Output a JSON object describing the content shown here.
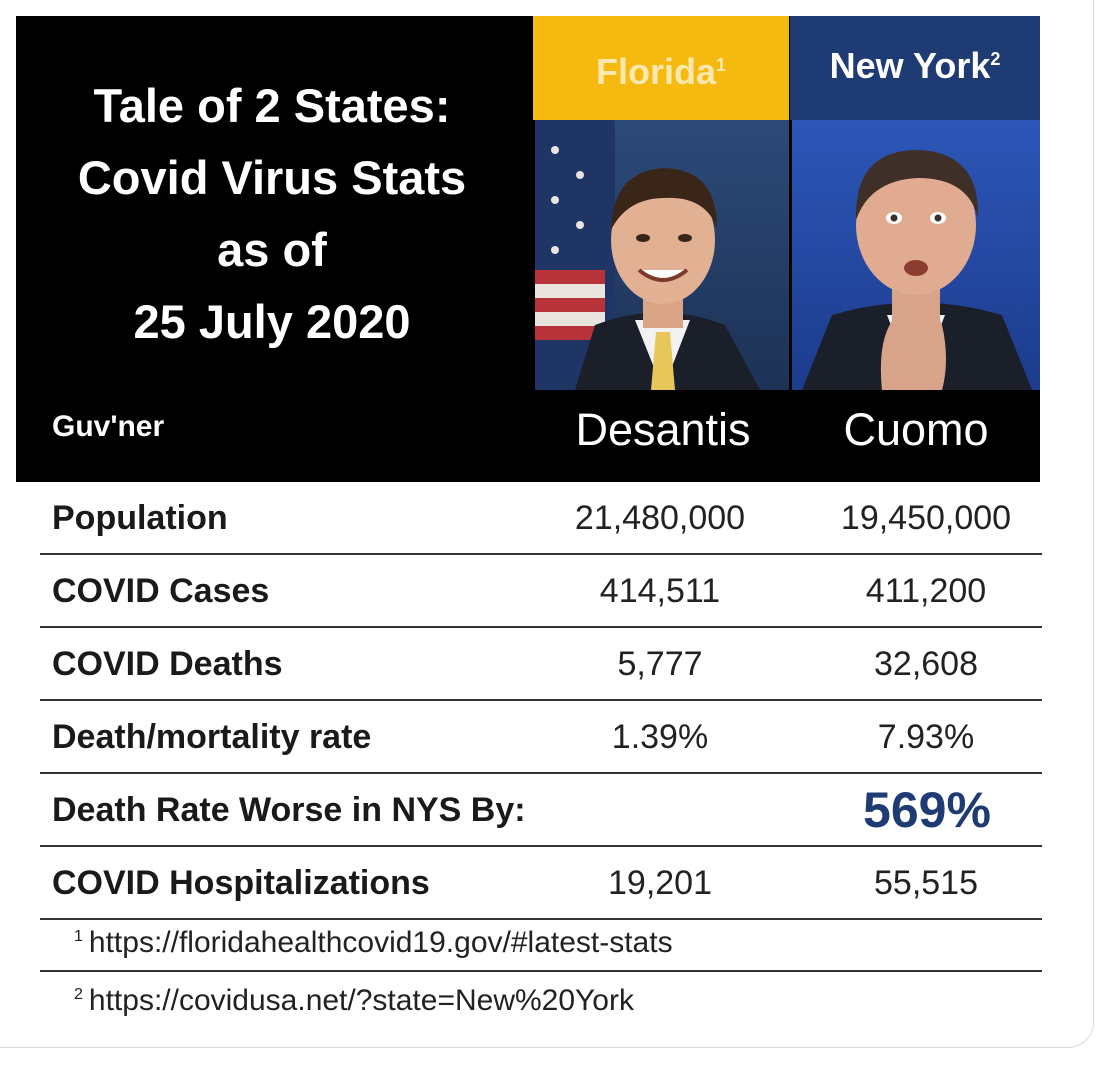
{
  "title_lines": [
    "Tale of 2 States:",
    "Covid Virus Stats",
    "as of",
    "25 July 2020"
  ],
  "columns": {
    "florida": {
      "state": "Florida",
      "note_mark": "1",
      "governor": "Desantis"
    },
    "new_york": {
      "state": "New York",
      "note_mark": "2",
      "governor": "Cuomo"
    }
  },
  "governor_label": "Guv'ner",
  "rows": [
    {
      "label": "Population",
      "florida": "21,480,000",
      "new_york": "19,450,000"
    },
    {
      "label": "COVID Cases",
      "florida": "414,511",
      "new_york": "411,200"
    },
    {
      "label": "COVID Deaths",
      "florida": "5,777",
      "new_york": "32,608"
    },
    {
      "label": "Death/mortality rate",
      "florida": "1.39%",
      "new_york": "7.93%"
    },
    {
      "label": "Death Rate Worse in NYS By:",
      "highlight": "569%"
    },
    {
      "label": "COVID Hospitalizations",
      "florida": "19,201",
      "new_york": "55,515"
    }
  ],
  "footnotes": [
    {
      "mark": "1",
      "text": "https://floridahealthcovid19.gov/#latest-stats"
    },
    {
      "mark": "2",
      "text": "https://covidusa.net/?state=New%20York"
    }
  ],
  "colors": {
    "florida_header": "#f5b90f",
    "new_york_header": "#1f3b73",
    "highlight": "#1f3b73"
  }
}
